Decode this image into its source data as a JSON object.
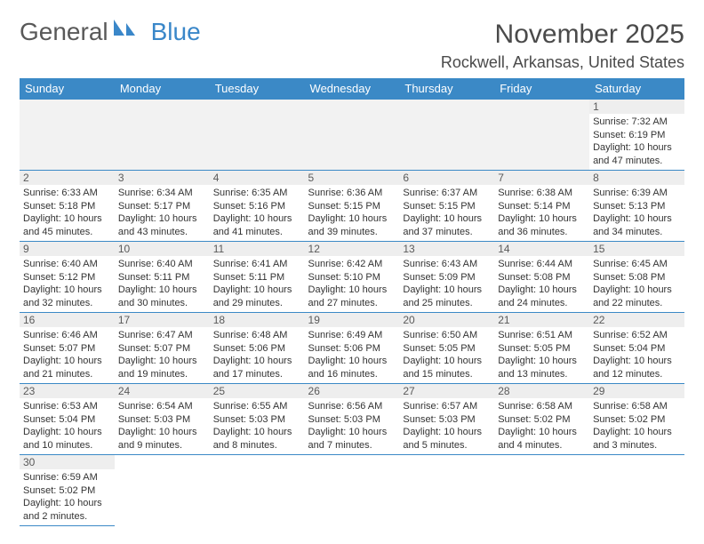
{
  "brand": {
    "left": "General",
    "right": "Blue"
  },
  "title": {
    "month": "November 2025",
    "location": "Rockwell, Arkansas, United States"
  },
  "colors": {
    "header": "#3b89c6",
    "brandBlue": "#3a87c9",
    "brandGray": "#595959",
    "padBg": "#f2f2f2"
  },
  "dayHeaders": [
    "Sunday",
    "Monday",
    "Tuesday",
    "Wednesday",
    "Thursday",
    "Friday",
    "Saturday"
  ],
  "weeks": [
    [
      null,
      null,
      null,
      null,
      null,
      null,
      {
        "n": "1",
        "sr": "7:32 AM",
        "ss": "6:19 PM",
        "dl": "10 hours and 47 minutes."
      }
    ],
    [
      {
        "n": "2",
        "sr": "6:33 AM",
        "ss": "5:18 PM",
        "dl": "10 hours and 45 minutes."
      },
      {
        "n": "3",
        "sr": "6:34 AM",
        "ss": "5:17 PM",
        "dl": "10 hours and 43 minutes."
      },
      {
        "n": "4",
        "sr": "6:35 AM",
        "ss": "5:16 PM",
        "dl": "10 hours and 41 minutes."
      },
      {
        "n": "5",
        "sr": "6:36 AM",
        "ss": "5:15 PM",
        "dl": "10 hours and 39 minutes."
      },
      {
        "n": "6",
        "sr": "6:37 AM",
        "ss": "5:15 PM",
        "dl": "10 hours and 37 minutes."
      },
      {
        "n": "7",
        "sr": "6:38 AM",
        "ss": "5:14 PM",
        "dl": "10 hours and 36 minutes."
      },
      {
        "n": "8",
        "sr": "6:39 AM",
        "ss": "5:13 PM",
        "dl": "10 hours and 34 minutes."
      }
    ],
    [
      {
        "n": "9",
        "sr": "6:40 AM",
        "ss": "5:12 PM",
        "dl": "10 hours and 32 minutes."
      },
      {
        "n": "10",
        "sr": "6:40 AM",
        "ss": "5:11 PM",
        "dl": "10 hours and 30 minutes."
      },
      {
        "n": "11",
        "sr": "6:41 AM",
        "ss": "5:11 PM",
        "dl": "10 hours and 29 minutes."
      },
      {
        "n": "12",
        "sr": "6:42 AM",
        "ss": "5:10 PM",
        "dl": "10 hours and 27 minutes."
      },
      {
        "n": "13",
        "sr": "6:43 AM",
        "ss": "5:09 PM",
        "dl": "10 hours and 25 minutes."
      },
      {
        "n": "14",
        "sr": "6:44 AM",
        "ss": "5:08 PM",
        "dl": "10 hours and 24 minutes."
      },
      {
        "n": "15",
        "sr": "6:45 AM",
        "ss": "5:08 PM",
        "dl": "10 hours and 22 minutes."
      }
    ],
    [
      {
        "n": "16",
        "sr": "6:46 AM",
        "ss": "5:07 PM",
        "dl": "10 hours and 21 minutes."
      },
      {
        "n": "17",
        "sr": "6:47 AM",
        "ss": "5:07 PM",
        "dl": "10 hours and 19 minutes."
      },
      {
        "n": "18",
        "sr": "6:48 AM",
        "ss": "5:06 PM",
        "dl": "10 hours and 17 minutes."
      },
      {
        "n": "19",
        "sr": "6:49 AM",
        "ss": "5:06 PM",
        "dl": "10 hours and 16 minutes."
      },
      {
        "n": "20",
        "sr": "6:50 AM",
        "ss": "5:05 PM",
        "dl": "10 hours and 15 minutes."
      },
      {
        "n": "21",
        "sr": "6:51 AM",
        "ss": "5:05 PM",
        "dl": "10 hours and 13 minutes."
      },
      {
        "n": "22",
        "sr": "6:52 AM",
        "ss": "5:04 PM",
        "dl": "10 hours and 12 minutes."
      }
    ],
    [
      {
        "n": "23",
        "sr": "6:53 AM",
        "ss": "5:04 PM",
        "dl": "10 hours and 10 minutes."
      },
      {
        "n": "24",
        "sr": "6:54 AM",
        "ss": "5:03 PM",
        "dl": "10 hours and 9 minutes."
      },
      {
        "n": "25",
        "sr": "6:55 AM",
        "ss": "5:03 PM",
        "dl": "10 hours and 8 minutes."
      },
      {
        "n": "26",
        "sr": "6:56 AM",
        "ss": "5:03 PM",
        "dl": "10 hours and 7 minutes."
      },
      {
        "n": "27",
        "sr": "6:57 AM",
        "ss": "5:03 PM",
        "dl": "10 hours and 5 minutes."
      },
      {
        "n": "28",
        "sr": "6:58 AM",
        "ss": "5:02 PM",
        "dl": "10 hours and 4 minutes."
      },
      {
        "n": "29",
        "sr": "6:58 AM",
        "ss": "5:02 PM",
        "dl": "10 hours and 3 minutes."
      }
    ],
    [
      {
        "n": "30",
        "sr": "6:59 AM",
        "ss": "5:02 PM",
        "dl": "10 hours and 2 minutes."
      },
      null,
      null,
      null,
      null,
      null,
      null
    ]
  ],
  "labels": {
    "sunrise": "Sunrise: ",
    "sunset": "Sunset: ",
    "daylight": "Daylight: "
  }
}
